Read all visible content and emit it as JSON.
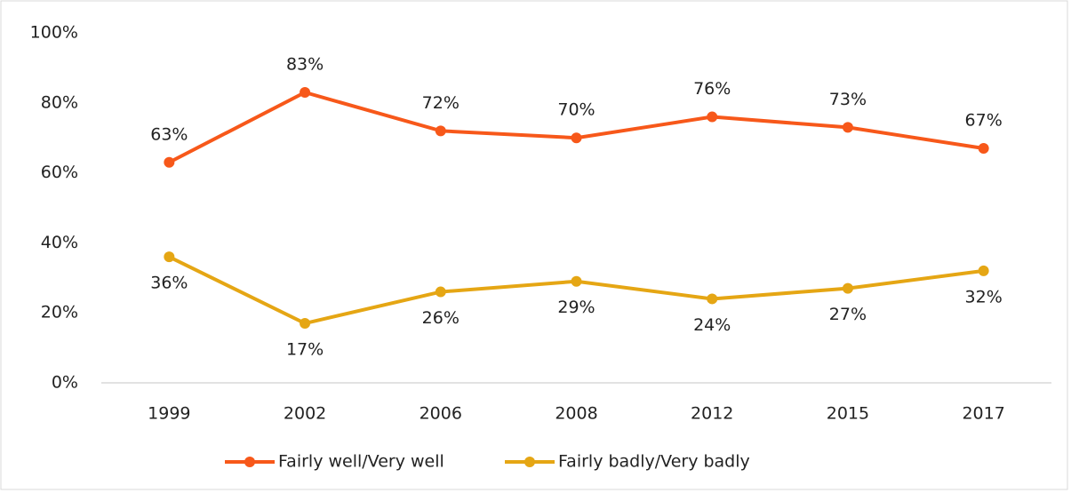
{
  "chart_data": {
    "type": "line",
    "categories": [
      "1999",
      "2002",
      "2006",
      "2008",
      "2012",
      "2015",
      "2017"
    ],
    "series": [
      {
        "name": "Fairly well/Very well",
        "color": "#f7581a",
        "values": [
          63,
          83,
          72,
          70,
          76,
          73,
          67
        ],
        "value_labels": [
          "63%",
          "83%",
          "72%",
          "70%",
          "76%",
          "73%",
          "67%"
        ],
        "label_position": "above"
      },
      {
        "name": "Fairly badly/Very badly",
        "color": "#e5a614",
        "values": [
          36,
          17,
          26,
          29,
          24,
          27,
          32
        ],
        "value_labels": [
          "36%",
          "17%",
          "26%",
          "29%",
          "24%",
          "27%",
          "32%"
        ],
        "label_position": "below"
      }
    ],
    "ylim": [
      0,
      100
    ],
    "yticks": [
      {
        "value": 0,
        "label": "0%"
      },
      {
        "value": 20,
        "label": "20%"
      },
      {
        "value": 40,
        "label": "40%"
      },
      {
        "value": 60,
        "label": "60%"
      },
      {
        "value": 80,
        "label": "80%"
      },
      {
        "value": 100,
        "label": "100%"
      }
    ],
    "legend": "bottom"
  }
}
